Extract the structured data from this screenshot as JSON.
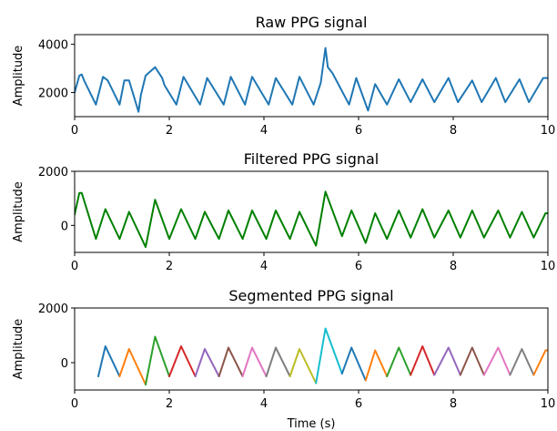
{
  "chart_data": [
    {
      "type": "line",
      "title": "Raw PPG signal",
      "xlabel": "",
      "ylabel": "Amplitude",
      "xlim": [
        0,
        10
      ],
      "ylim": [
        1000,
        4400
      ],
      "xticks": [
        0,
        2,
        4,
        6,
        8,
        10
      ],
      "yticks": [
        2000,
        4000
      ],
      "series": [
        {
          "color": "#1f77b4",
          "x": [
            0.0,
            0.1,
            0.15,
            0.2,
            0.45,
            0.6,
            0.7,
            0.95,
            1.05,
            1.15,
            1.35,
            1.4,
            1.5,
            1.7,
            1.75,
            1.85,
            1.9,
            2.15,
            2.3,
            2.65,
            2.8,
            3.15,
            3.3,
            3.6,
            3.75,
            4.1,
            4.25,
            4.6,
            4.75,
            5.05,
            5.2,
            5.3,
            5.35,
            5.45,
            5.8,
            5.95,
            6.2,
            6.35,
            6.6,
            6.85,
            7.1,
            7.35,
            7.6,
            7.9,
            8.1,
            8.4,
            8.6,
            8.9,
            9.1,
            9.4,
            9.6,
            9.9,
            10.0
          ],
          "y": [
            2000,
            2700,
            2750,
            2500,
            1500,
            2650,
            2500,
            1500,
            2500,
            2500,
            1200,
            1900,
            2700,
            3050,
            2900,
            2600,
            2300,
            1500,
            2650,
            1500,
            2600,
            1500,
            2650,
            1500,
            2650,
            1500,
            2600,
            1500,
            2650,
            1500,
            2400,
            3850,
            3050,
            2800,
            1500,
            2600,
            1250,
            2350,
            1500,
            2550,
            1600,
            2550,
            1600,
            2600,
            1600,
            2500,
            1600,
            2600,
            1600,
            2550,
            1600,
            2600,
            2600
          ]
        }
      ]
    },
    {
      "type": "line",
      "title": "Filtered PPG signal",
      "xlabel": "",
      "ylabel": "Amplitude",
      "xlim": [
        0,
        10
      ],
      "ylim": [
        -1000,
        2000
      ],
      "xticks": [
        0,
        2,
        4,
        6,
        8,
        10
      ],
      "yticks": [
        0,
        2000
      ],
      "series": [
        {
          "color": "#008000",
          "x": [
            0.0,
            0.1,
            0.15,
            0.45,
            0.65,
            0.95,
            1.15,
            1.5,
            1.7,
            2.0,
            2.25,
            2.55,
            2.75,
            3.05,
            3.25,
            3.55,
            3.75,
            4.05,
            4.25,
            4.55,
            4.75,
            5.1,
            5.3,
            5.65,
            5.85,
            6.15,
            6.35,
            6.6,
            6.85,
            7.1,
            7.35,
            7.6,
            7.9,
            8.15,
            8.4,
            8.65,
            8.95,
            9.2,
            9.45,
            9.7,
            9.95,
            10.0
          ],
          "y": [
            400,
            1200,
            1200,
            -500,
            600,
            -500,
            500,
            -800,
            950,
            -500,
            600,
            -500,
            500,
            -500,
            550,
            -500,
            550,
            -500,
            550,
            -500,
            500,
            -750,
            1250,
            -400,
            550,
            -650,
            450,
            -500,
            550,
            -450,
            600,
            -450,
            550,
            -450,
            550,
            -450,
            550,
            -450,
            500,
            -450,
            450,
            450
          ]
        }
      ]
    },
    {
      "type": "line",
      "title": "Segmented PPG signal",
      "xlabel": "Time (s)",
      "ylabel": "Amplitude",
      "xlim": [
        0,
        10
      ],
      "ylim": [
        -1000,
        2000
      ],
      "xticks": [
        0,
        2,
        4,
        6,
        8,
        10
      ],
      "yticks": [
        0,
        2000
      ],
      "series": [
        {
          "color": "#1f77b4",
          "x": [
            0.5,
            0.65,
            0.95
          ],
          "y": [
            -500,
            600,
            -500
          ]
        },
        {
          "color": "#ff7f0e",
          "x": [
            0.95,
            1.15,
            1.5
          ],
          "y": [
            -500,
            500,
            -800
          ]
        },
        {
          "color": "#2ca02c",
          "x": [
            1.5,
            1.7,
            2.0
          ],
          "y": [
            -800,
            950,
            -500
          ]
        },
        {
          "color": "#d62728",
          "x": [
            2.0,
            2.25,
            2.55
          ],
          "y": [
            -500,
            600,
            -500
          ]
        },
        {
          "color": "#9467bd",
          "x": [
            2.55,
            2.75,
            3.05
          ],
          "y": [
            -500,
            500,
            -500
          ]
        },
        {
          "color": "#8c564b",
          "x": [
            3.05,
            3.25,
            3.55
          ],
          "y": [
            -500,
            550,
            -500
          ]
        },
        {
          "color": "#e377c2",
          "x": [
            3.55,
            3.75,
            4.05
          ],
          "y": [
            -500,
            550,
            -500
          ]
        },
        {
          "color": "#7f7f7f",
          "x": [
            4.05,
            4.25,
            4.55
          ],
          "y": [
            -500,
            550,
            -500
          ]
        },
        {
          "color": "#bcbd22",
          "x": [
            4.55,
            4.75,
            5.1
          ],
          "y": [
            -500,
            500,
            -750
          ]
        },
        {
          "color": "#17becf",
          "x": [
            5.1,
            5.3,
            5.65
          ],
          "y": [
            -750,
            1250,
            -400
          ]
        },
        {
          "color": "#1f77b4",
          "x": [
            5.65,
            5.85,
            6.15
          ],
          "y": [
            -400,
            550,
            -650
          ]
        },
        {
          "color": "#ff7f0e",
          "x": [
            6.15,
            6.35,
            6.6
          ],
          "y": [
            -650,
            450,
            -500
          ]
        },
        {
          "color": "#2ca02c",
          "x": [
            6.6,
            6.85,
            7.1
          ],
          "y": [
            -500,
            550,
            -450
          ]
        },
        {
          "color": "#d62728",
          "x": [
            7.1,
            7.35,
            7.6
          ],
          "y": [
            -450,
            600,
            -450
          ]
        },
        {
          "color": "#9467bd",
          "x": [
            7.6,
            7.9,
            8.15
          ],
          "y": [
            -450,
            550,
            -450
          ]
        },
        {
          "color": "#8c564b",
          "x": [
            8.15,
            8.4,
            8.65
          ],
          "y": [
            -450,
            550,
            -450
          ]
        },
        {
          "color": "#e377c2",
          "x": [
            8.65,
            8.95,
            9.2
          ],
          "y": [
            -450,
            550,
            -450
          ]
        },
        {
          "color": "#7f7f7f",
          "x": [
            9.2,
            9.45,
            9.7
          ],
          "y": [
            -450,
            500,
            -450
          ]
        },
        {
          "color": "#ff7f0e",
          "x": [
            9.7,
            9.95,
            10.0
          ],
          "y": [
            -450,
            450,
            450
          ]
        }
      ]
    }
  ]
}
